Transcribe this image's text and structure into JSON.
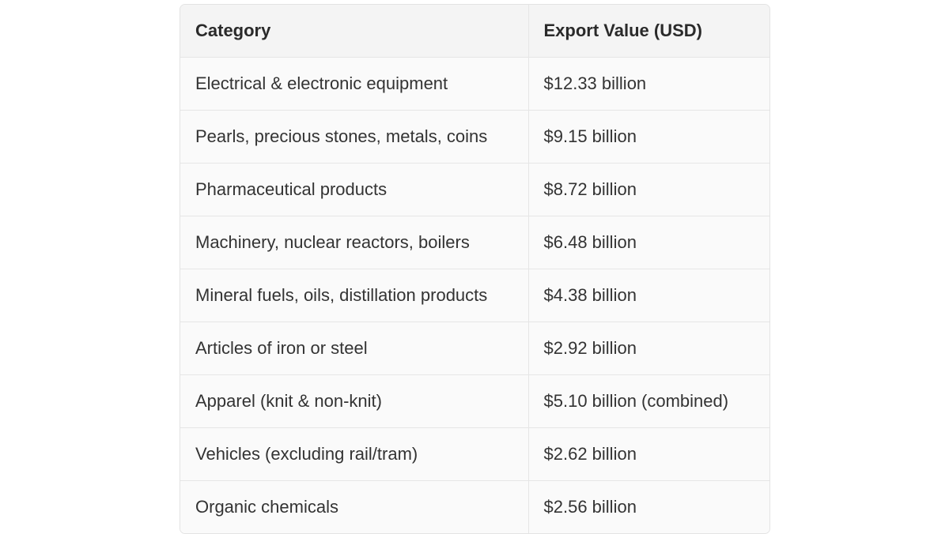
{
  "table": {
    "headers": [
      "Category",
      "Export Value (USD)"
    ],
    "rows": [
      [
        "Electrical & electronic equipment",
        "$12.33 billion"
      ],
      [
        "Pearls, precious stones, metals, coins",
        "$9.15 billion"
      ],
      [
        "Pharmaceutical products",
        "$8.72 billion"
      ],
      [
        "Machinery, nuclear reactors, boilers",
        "$6.48 billion"
      ],
      [
        "Mineral fuels, oils, distillation products",
        "$4.38 billion"
      ],
      [
        "Articles of iron or steel",
        "$2.92 billion"
      ],
      [
        "Apparel (knit & non-knit)",
        "$5.10 billion (combined)"
      ],
      [
        "Vehicles (excluding rail/tram)",
        "$2.62 billion"
      ],
      [
        "Organic chemicals",
        "$2.56 billion"
      ]
    ]
  }
}
